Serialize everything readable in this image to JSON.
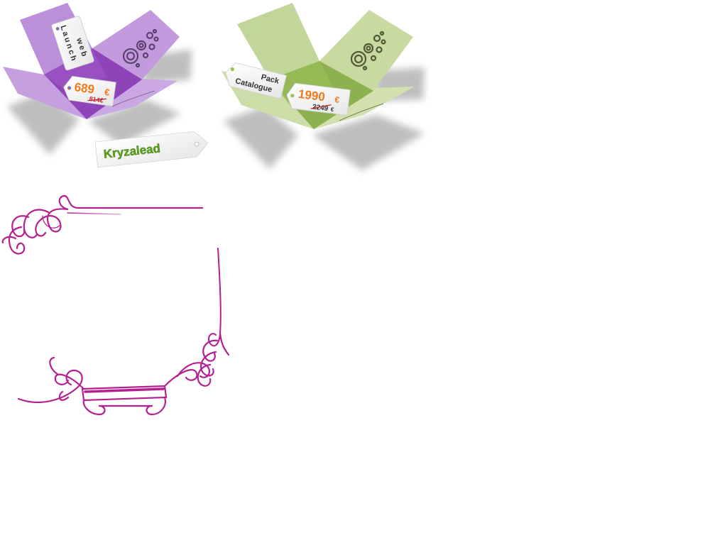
{
  "colors": {
    "purple_box": "#b98fd6",
    "purple_dark": "#8d3fb5",
    "green_box": "#c1d49a",
    "green_dark": "#8cb14e",
    "price_orange": "#f07a1c",
    "old_price_red": "#c0272d",
    "brand_green": "#5aa21a",
    "ornament": "#b5208f",
    "shadow": "#a8a8a8"
  },
  "offer_launch": {
    "tag_line1": "Launch",
    "tag_line2": "web",
    "price": "689",
    "currency": "€",
    "old_price": "814€"
  },
  "offer_catalogue": {
    "tag_line1": "Pack",
    "tag_line2": "Catalogue",
    "price": "1990",
    "currency": "€",
    "old_price": "2249",
    "old_currency": "€"
  },
  "brand": {
    "name": "Kryzalead"
  },
  "icons": {
    "circles": "circles-logo-icon",
    "ornament": "decorative-flourish-frame"
  }
}
